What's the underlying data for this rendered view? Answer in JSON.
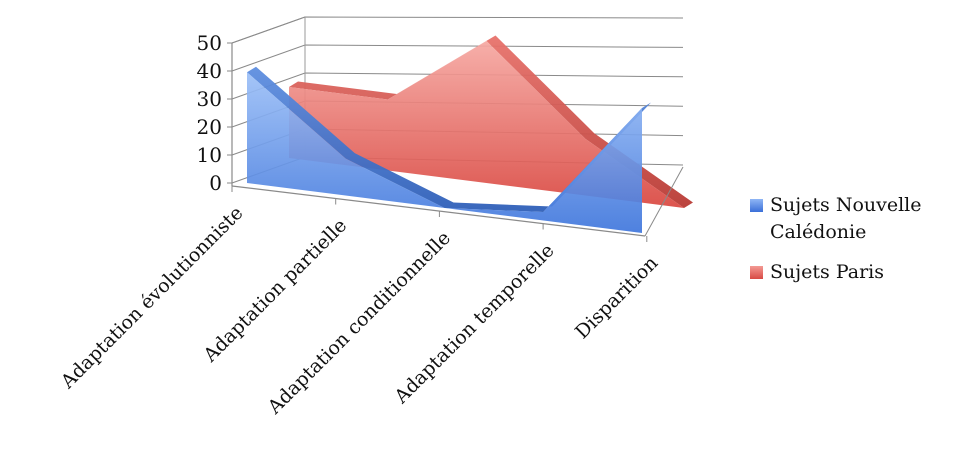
{
  "chart_data": {
    "type": "area",
    "categories": [
      "Adaptation évolutionniste",
      "Adaptation partielle",
      "Adaptation conditionnelle",
      "Adaptation temporelle",
      "Disparition"
    ],
    "series": [
      {
        "name": "Sujets Nouvelle\nCalédonie",
        "values": [
          39,
          13,
          0,
          3,
          44
        ],
        "color": "#4a7fe0"
      },
      {
        "name": "Sujets Paris",
        "values": [
          25,
          25,
          50,
          20,
          0
        ],
        "color": "#e0605a"
      }
    ],
    "yticks": [
      "0",
      "10",
      "20",
      "30",
      "40",
      "50"
    ],
    "ylim": [
      0,
      50
    ],
    "grid": true,
    "legend_position": "right",
    "three_d": true
  }
}
